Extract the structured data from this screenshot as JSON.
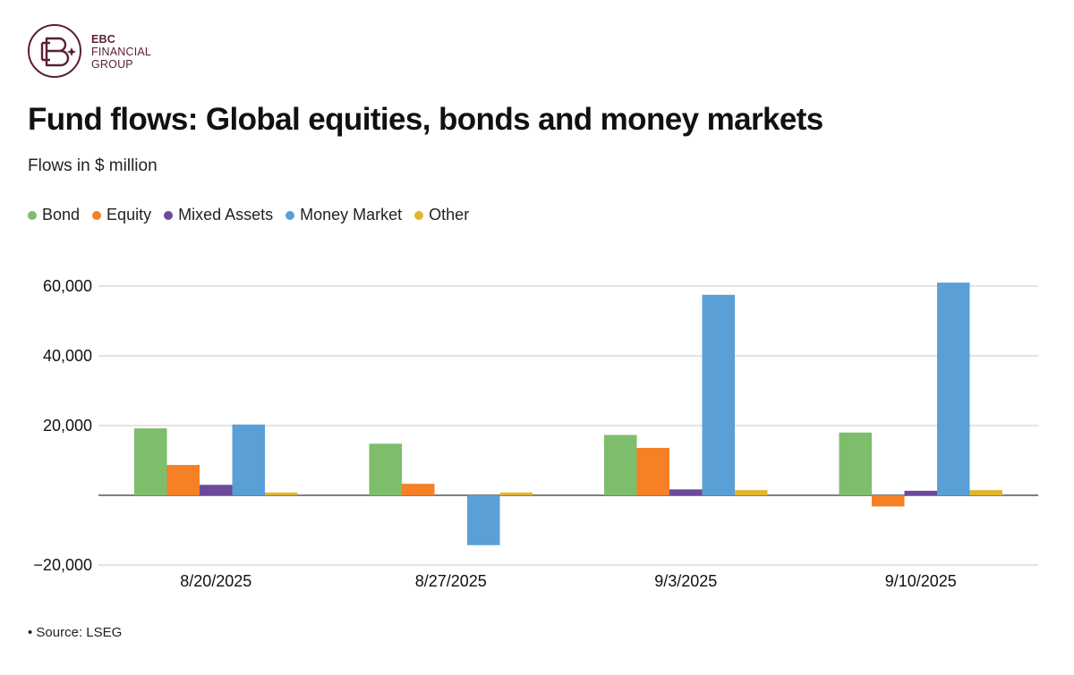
{
  "brand": {
    "line1": "EBC",
    "line2": "FINANCIAL",
    "line3": "GROUP",
    "color": "#5b1f33"
  },
  "title": "Fund flows: Global equities, bonds and money markets",
  "subtitle": "Flows in $ million",
  "source": "• Source: LSEG",
  "chart_data": {
    "type": "bar",
    "title": "Fund flows: Global equities, bonds and money markets",
    "subtitle": "Flows in $ million",
    "categories": [
      "8/20/2025",
      "8/27/2025",
      "9/3/2025",
      "9/10/2025"
    ],
    "series": [
      {
        "name": "Bond",
        "color": "#7dbd6b",
        "values": [
          19200,
          14800,
          17300,
          18000
        ]
      },
      {
        "name": "Equity",
        "color": "#f58025",
        "values": [
          8700,
          3300,
          13600,
          -3200
        ]
      },
      {
        "name": "Mixed Assets",
        "color": "#6b4a9b",
        "values": [
          3000,
          0,
          1700,
          1300
        ]
      },
      {
        "name": "Money Market",
        "color": "#5aa0d6",
        "values": [
          20300,
          -14300,
          57500,
          61000
        ]
      },
      {
        "name": "Other",
        "color": "#e3b52f",
        "values": [
          800,
          800,
          1500,
          1500
        ]
      }
    ],
    "ylim": [
      -20000,
      60000
    ],
    "yticks": [
      -20000,
      0,
      20000,
      40000,
      60000
    ],
    "ytick_labels": [
      "−20,000",
      "",
      "20,000",
      "40,000",
      "60,000"
    ],
    "grid": true,
    "legend": "top-left"
  }
}
